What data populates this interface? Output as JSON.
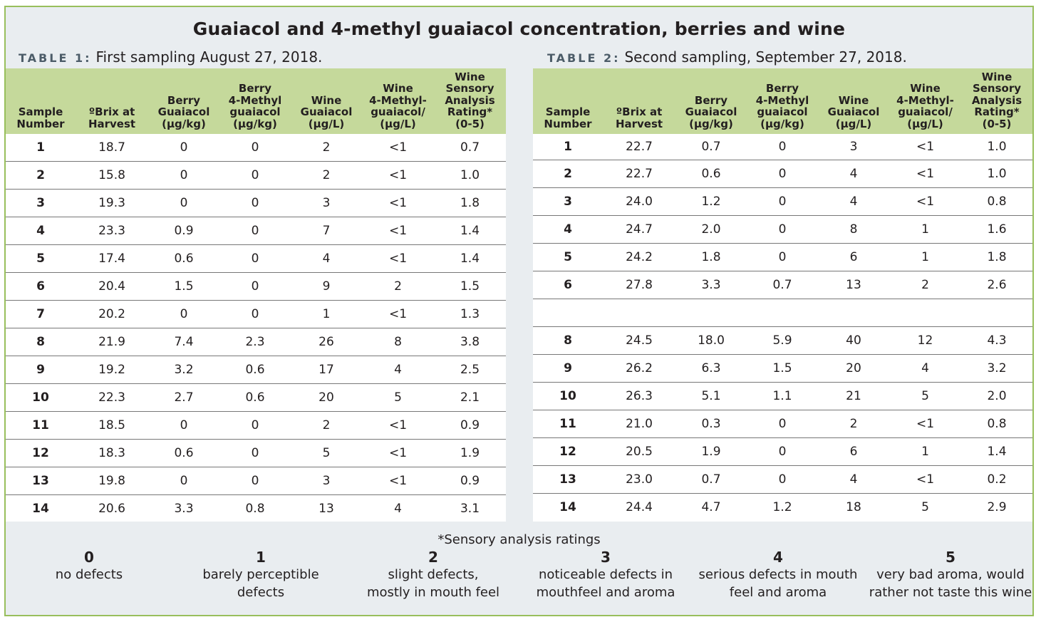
{
  "title": "Guaiacol and 4-methyl guaiacol concentration, berries and wine",
  "headers": [
    [
      "Sample",
      "Number"
    ],
    [
      "ºBrix at",
      "Harvest"
    ],
    [
      "Berry",
      "Guaiacol",
      "(µg/kg)"
    ],
    [
      "Berry",
      "4-Methyl",
      "guaiacol",
      "(µg/kg)"
    ],
    [
      "Wine",
      "Guaiacol",
      "(µg/L)"
    ],
    [
      "Wine",
      "4-Methyl-",
      "guaiacol/",
      "(µg/L)"
    ],
    [
      "Wine",
      "Sensory",
      "Analysis",
      "Rating*",
      "(0-5)"
    ]
  ],
  "table1": {
    "tag": "TABLE 1:",
    "caption": "First sampling August 27, 2018.",
    "rows": [
      [
        "1",
        "18.7",
        "0",
        "0",
        "2",
        "<1",
        "0.7"
      ],
      [
        "2",
        "15.8",
        "0",
        "0",
        "2",
        "<1",
        "1.0"
      ],
      [
        "3",
        "19.3",
        "0",
        "0",
        "3",
        "<1",
        "1.8"
      ],
      [
        "4",
        "23.3",
        "0.9",
        "0",
        "7",
        "<1",
        "1.4"
      ],
      [
        "5",
        "17.4",
        "0.6",
        "0",
        "4",
        "<1",
        "1.4"
      ],
      [
        "6",
        "20.4",
        "1.5",
        "0",
        "9",
        "2",
        "1.5"
      ],
      [
        "7",
        "20.2",
        "0",
        "0",
        "1",
        "<1",
        "1.3"
      ],
      [
        "8",
        "21.9",
        "7.4",
        "2.3",
        "26",
        "8",
        "3.8"
      ],
      [
        "9",
        "19.2",
        "3.2",
        "0.6",
        "17",
        "4",
        "2.5"
      ],
      [
        "10",
        "22.3",
        "2.7",
        "0.6",
        "20",
        "5",
        "2.1"
      ],
      [
        "11",
        "18.5",
        "0",
        "0",
        "2",
        "<1",
        "0.9"
      ],
      [
        "12",
        "18.3",
        "0.6",
        "0",
        "5",
        "<1",
        "1.9"
      ],
      [
        "13",
        "19.8",
        "0",
        "0",
        "3",
        "<1",
        "0.9"
      ],
      [
        "14",
        "20.6",
        "3.3",
        "0.8",
        "13",
        "4",
        "3.1"
      ]
    ]
  },
  "table2": {
    "tag": "TABLE 2:",
    "caption": "Second sampling, September 27, 2018.",
    "rows": [
      [
        "1",
        "22.7",
        "0.7",
        "0",
        "3",
        "<1",
        "1.0"
      ],
      [
        "2",
        "22.7",
        "0.6",
        "0",
        "4",
        "<1",
        "1.0"
      ],
      [
        "3",
        "24.0",
        "1.2",
        "0",
        "4",
        "<1",
        "0.8"
      ],
      [
        "4",
        "24.7",
        "2.0",
        "0",
        "8",
        "1",
        "1.6"
      ],
      [
        "5",
        "24.2",
        "1.8",
        "0",
        "6",
        "1",
        "1.8"
      ],
      [
        "6",
        "27.8",
        "3.3",
        "0.7",
        "13",
        "2",
        "2.6"
      ],
      [
        "",
        "",
        "",
        "",
        "",
        "",
        ""
      ],
      [
        "8",
        "24.5",
        "18.0",
        "5.9",
        "40",
        "12",
        "4.3"
      ],
      [
        "9",
        "26.2",
        "6.3",
        "1.5",
        "20",
        "4",
        "3.2"
      ],
      [
        "10",
        "26.3",
        "5.1",
        "1.1",
        "21",
        "5",
        "2.0"
      ],
      [
        "11",
        "21.0",
        "0.3",
        "0",
        "2",
        "<1",
        "0.8"
      ],
      [
        "12",
        "20.5",
        "1.9",
        "0",
        "6",
        "1",
        "1.4"
      ],
      [
        "13",
        "23.0",
        "0.7",
        "0",
        "4",
        "<1",
        "0.2"
      ],
      [
        "14",
        "24.4",
        "4.7",
        "1.2",
        "18",
        "5",
        "2.9"
      ]
    ]
  },
  "legend": {
    "title": "*Sensory analysis ratings",
    "items": [
      {
        "rating": "0",
        "lines": [
          "no defects"
        ]
      },
      {
        "rating": "1",
        "lines": [
          "barely perceptible",
          "defects"
        ]
      },
      {
        "rating": "2",
        "lines": [
          "slight defects,",
          "mostly in mouth feel"
        ]
      },
      {
        "rating": "3",
        "lines": [
          "noticeable defects in",
          "mouthfeel and aroma"
        ]
      },
      {
        "rating": "4",
        "lines": [
          "serious defects in mouth",
          "feel and aroma"
        ]
      },
      {
        "rating": "5",
        "lines": [
          "very bad aroma, would",
          "rather not taste this wine"
        ]
      }
    ]
  },
  "colors": {
    "header_fill": "#c5d99b",
    "frame_border": "#98bf5c",
    "background": "#e9edf0"
  }
}
